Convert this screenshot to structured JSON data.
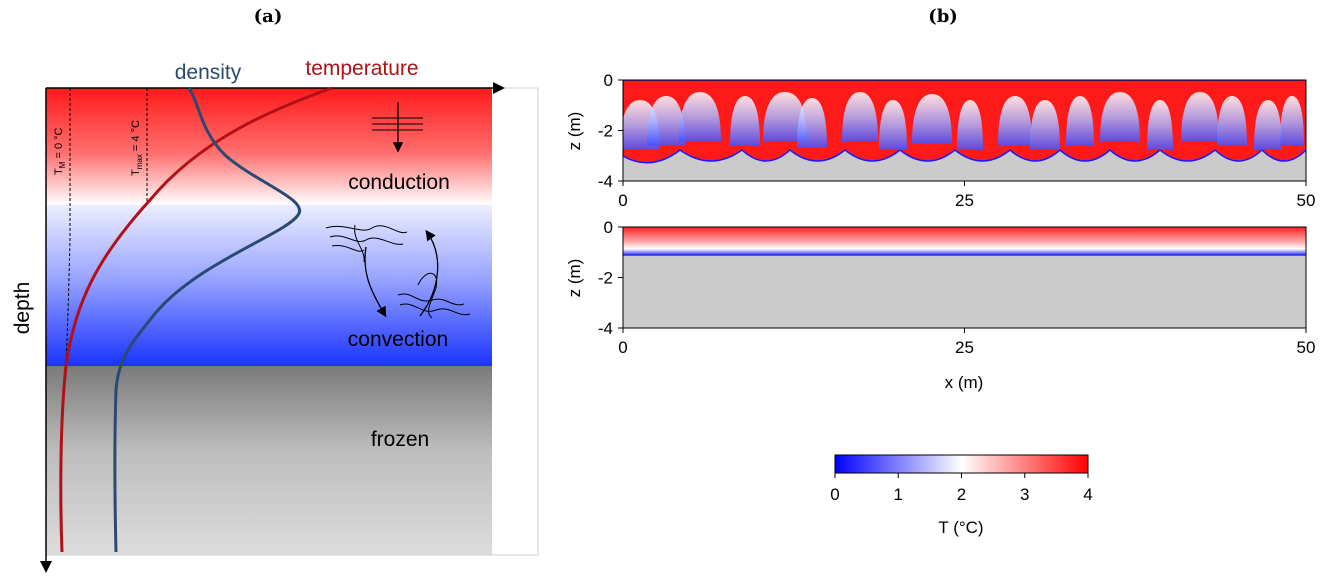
{
  "panel_a": {
    "label": "(a)",
    "axis_label": "depth",
    "curve_labels": {
      "density": "density",
      "temperature": "temperature"
    },
    "markers": {
      "t_m": "T",
      "t_m_sub": "M",
      "t_m_val": " = 0 °C",
      "t_max": "T",
      "t_max_sub": "max",
      "t_max_val": " = 4 °C"
    },
    "zones": {
      "conduction": "conduction",
      "convection": "convection",
      "frozen": "frozen"
    },
    "colors": {
      "warm": "#ff1a1a",
      "cold": "#1a33ff",
      "frozen_top": "#7f7f7f",
      "frozen_bottom": "#dcdcdc",
      "temperature_curve": "#b01016",
      "density_curve": "#2a4a73"
    }
  },
  "panel_b": {
    "label": "(b)",
    "top": {
      "ylabel": "z (m)",
      "yticks": [
        "0",
        "-2",
        "-4"
      ],
      "xticks": [
        "0",
        "25",
        "50"
      ]
    },
    "bottom": {
      "ylabel": "z (m)",
      "yticks": [
        "0",
        "-2",
        "-4"
      ],
      "xticks": [
        "0",
        "25",
        "50"
      ],
      "xlabel": "x (m)"
    },
    "colorbar": {
      "ticks": [
        "0",
        "1",
        "2",
        "3",
        "4"
      ],
      "label": "T (°C)"
    },
    "colors": {
      "hot": "#ff0000",
      "mid": "#ffffff",
      "cold": "#0000ff",
      "ice": "#cbcbcb"
    }
  }
}
